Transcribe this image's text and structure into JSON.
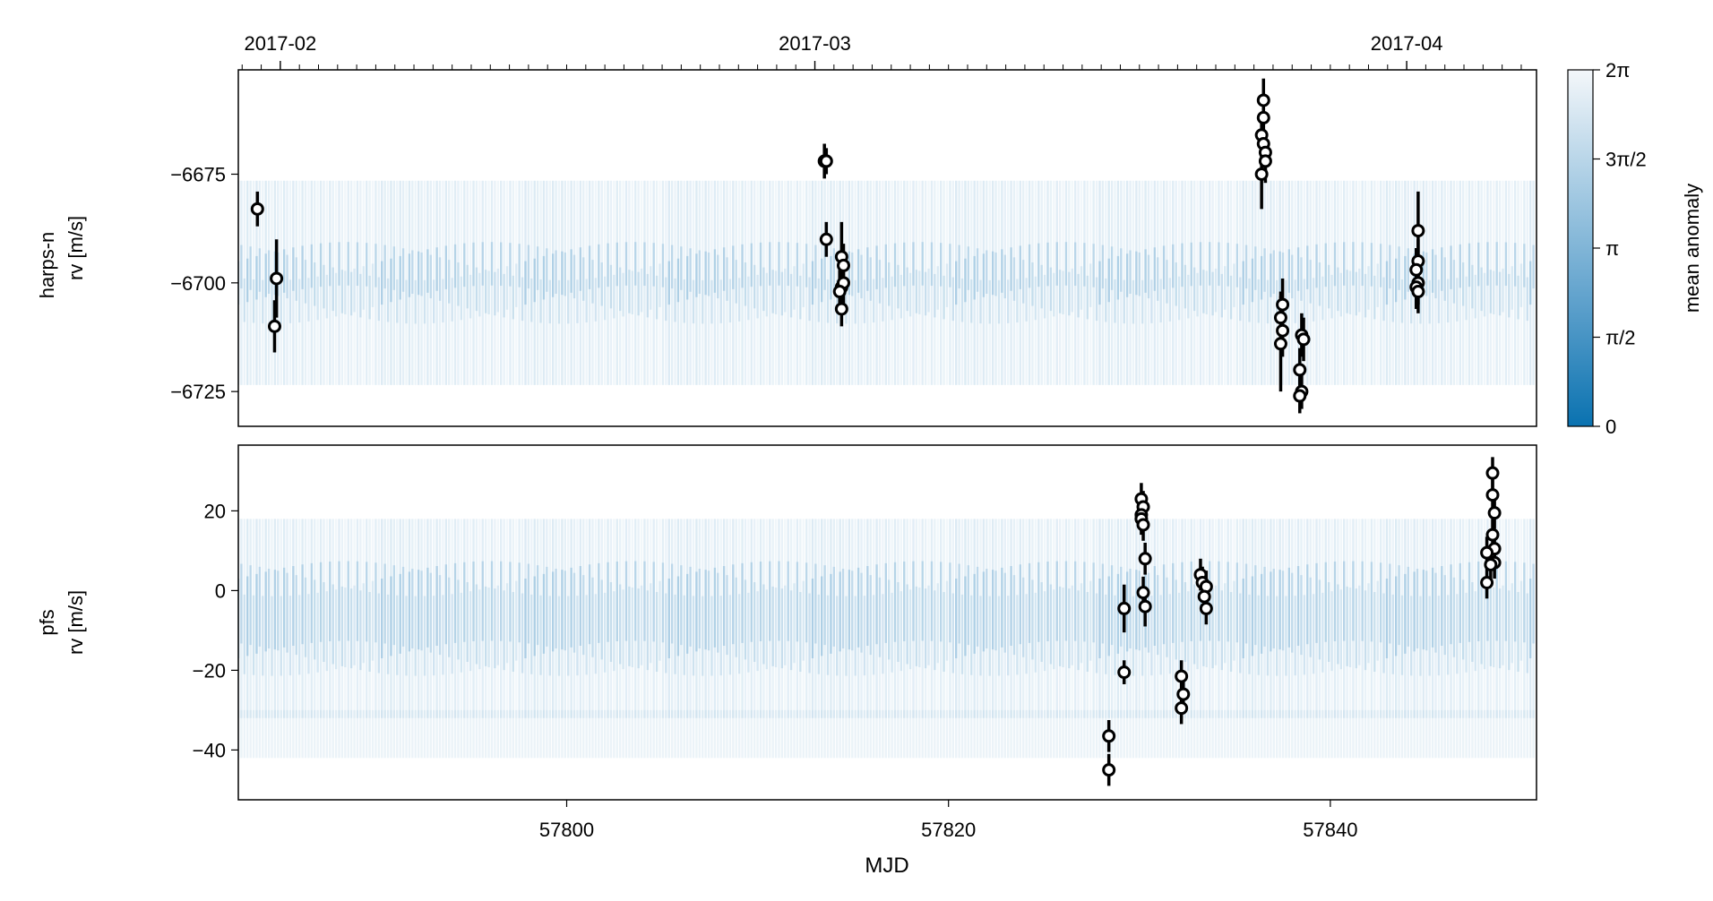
{
  "chart_data": {
    "type": "scatter",
    "xlabel": "MJD",
    "xlim": [
      57782.8,
      57850.8
    ],
    "x_ticks": [
      57800,
      57820,
      57840
    ],
    "top_axis": {
      "ticks": [
        {
          "label": "2017-02",
          "mjd": 57785
        },
        {
          "label": "2017-03",
          "mjd": 57813
        },
        {
          "label": "2017-04",
          "mjd": 57844
        }
      ]
    },
    "colorbar": {
      "label": "mean anomaly",
      "colormap": [
        "#0a72b0",
        "#5b9fcb",
        "#a6cbe3",
        "#f4f7fa"
      ],
      "tick_labels": [
        "0",
        "π/2",
        "π",
        "3π/2",
        "2π"
      ]
    },
    "panels": [
      {
        "instrument": "harps-n",
        "ylabel_line1": "harps-n",
        "ylabel_line2": "rv [m/s]",
        "ylim": [
          -6733,
          -6651
        ],
        "y_ticks": [
          -6675,
          -6700,
          -6725
        ],
        "model": {
          "center": -6700,
          "amplitude": 22,
          "period_days": 0.47,
          "band_half_width": 5
        },
        "points": [
          {
            "x": 57783.8,
            "y": -6683,
            "err": 4
          },
          {
            "x": 57784.8,
            "y": -6699,
            "err": 9
          },
          {
            "x": 57784.7,
            "y": -6710,
            "err": 6
          },
          {
            "x": 57813.5,
            "y": -6672,
            "err": 4
          },
          {
            "x": 57813.6,
            "y": -6672,
            "err": 3
          },
          {
            "x": 57813.6,
            "y": -6690,
            "err": 4
          },
          {
            "x": 57814.4,
            "y": -6694,
            "err": 8
          },
          {
            "x": 57814.5,
            "y": -6696,
            "err": 5
          },
          {
            "x": 57814.4,
            "y": -6701,
            "err": 5
          },
          {
            "x": 57814.5,
            "y": -6700,
            "err": 5
          },
          {
            "x": 57814.3,
            "y": -6702,
            "err": 5
          },
          {
            "x": 57814.4,
            "y": -6706,
            "err": 4
          },
          {
            "x": 57836.5,
            "y": -6658,
            "err": 5
          },
          {
            "x": 57836.5,
            "y": -6662,
            "err": 5
          },
          {
            "x": 57836.4,
            "y": -6666,
            "err": 5
          },
          {
            "x": 57836.5,
            "y": -6668,
            "err": 5
          },
          {
            "x": 57836.6,
            "y": -6670,
            "err": 5
          },
          {
            "x": 57836.6,
            "y": -6672,
            "err": 5
          },
          {
            "x": 57836.4,
            "y": -6675,
            "err": 8
          },
          {
            "x": 57837.5,
            "y": -6705,
            "err": 6
          },
          {
            "x": 57837.4,
            "y": -6708,
            "err": 6
          },
          {
            "x": 57837.5,
            "y": -6711,
            "err": 6
          },
          {
            "x": 57837.4,
            "y": -6714,
            "err": 11
          },
          {
            "x": 57838.5,
            "y": -6712,
            "err": 5
          },
          {
            "x": 57838.6,
            "y": -6713,
            "err": 5
          },
          {
            "x": 57838.4,
            "y": -6720,
            "err": 5
          },
          {
            "x": 57838.5,
            "y": -6725,
            "err": 4
          },
          {
            "x": 57838.4,
            "y": -6726,
            "err": 4
          },
          {
            "x": 57844.6,
            "y": -6688,
            "err": 9
          },
          {
            "x": 57844.6,
            "y": -6695,
            "err": 5
          },
          {
            "x": 57844.5,
            "y": -6697,
            "err": 5
          },
          {
            "x": 57844.6,
            "y": -6700,
            "err": 5
          },
          {
            "x": 57844.5,
            "y": -6701,
            "err": 5
          },
          {
            "x": 57844.6,
            "y": -6702,
            "err": 5
          }
        ]
      },
      {
        "instrument": "pfs",
        "ylabel_line1": "pfs",
        "ylabel_line2": "rv [m/s]",
        "ylim": [
          -52.5,
          36.5
        ],
        "y_ticks": [
          20,
          0,
          -20,
          -40
        ],
        "model": {
          "center": -7,
          "amplitude": 22,
          "period_days": 0.47,
          "band_half_width": 10,
          "extra_band": {
            "center": -36,
            "half_width": 6
          }
        },
        "points": [
          {
            "x": 57828.4,
            "y": -36.5,
            "err": 4
          },
          {
            "x": 57828.4,
            "y": -45,
            "err": 4
          },
          {
            "x": 57829.2,
            "y": -4.5,
            "err": 6
          },
          {
            "x": 57829.2,
            "y": -20.5,
            "err": 3
          },
          {
            "x": 57830.1,
            "y": 23,
            "err": 4
          },
          {
            "x": 57830.2,
            "y": 21,
            "err": 4
          },
          {
            "x": 57830.1,
            "y": 19,
            "err": 4
          },
          {
            "x": 57830.1,
            "y": 18,
            "err": 4
          },
          {
            "x": 57830.2,
            "y": 16.5,
            "err": 4
          },
          {
            "x": 57830.3,
            "y": 8,
            "err": 4
          },
          {
            "x": 57830.2,
            "y": -0.5,
            "err": 4
          },
          {
            "x": 57830.3,
            "y": -4,
            "err": 5
          },
          {
            "x": 57832.2,
            "y": -21.5,
            "err": 4
          },
          {
            "x": 57832.3,
            "y": -26,
            "err": 4
          },
          {
            "x": 57832.2,
            "y": -29.5,
            "err": 4
          },
          {
            "x": 57833.2,
            "y": 4,
            "err": 4
          },
          {
            "x": 57833.3,
            "y": 2,
            "err": 4
          },
          {
            "x": 57833.5,
            "y": 1,
            "err": 4
          },
          {
            "x": 57833.4,
            "y": -1.5,
            "err": 4
          },
          {
            "x": 57833.5,
            "y": -4.5,
            "err": 4
          },
          {
            "x": 57848.5,
            "y": 29.5,
            "err": 4
          },
          {
            "x": 57848.5,
            "y": 24,
            "err": 4
          },
          {
            "x": 57848.6,
            "y": 19.5,
            "err": 4
          },
          {
            "x": 57848.5,
            "y": 14,
            "err": 4
          },
          {
            "x": 57848.6,
            "y": 10.5,
            "err": 4
          },
          {
            "x": 57848.2,
            "y": 9.5,
            "err": 4
          },
          {
            "x": 57848.6,
            "y": 7,
            "err": 4
          },
          {
            "x": 57848.4,
            "y": 6.5,
            "err": 4
          },
          {
            "x": 57848.2,
            "y": 2,
            "err": 4
          }
        ]
      }
    ]
  }
}
